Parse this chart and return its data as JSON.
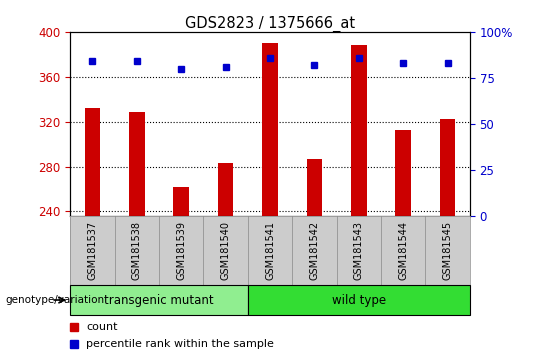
{
  "title": "GDS2823 / 1375666_at",
  "samples": [
    "GSM181537",
    "GSM181538",
    "GSM181539",
    "GSM181540",
    "GSM181541",
    "GSM181542",
    "GSM181543",
    "GSM181544",
    "GSM181545"
  ],
  "counts": [
    332,
    329,
    262,
    283,
    390,
    287,
    388,
    313,
    322
  ],
  "percentiles": [
    84,
    84,
    80,
    81,
    86,
    82,
    86,
    83,
    83
  ],
  "y_min": 236,
  "y_max": 400,
  "y_ticks_left": [
    240,
    280,
    320,
    360,
    400
  ],
  "y_ticks_right": [
    0,
    25,
    50,
    75,
    100
  ],
  "bar_color": "#cc0000",
  "dot_color": "#0000cc",
  "tick_label_color_left": "#cc0000",
  "tick_label_color_right": "#0000cc",
  "transgenic_color": "#90ee90",
  "wildtype_color": "#33dd33",
  "xticklabel_bg": "#cccccc",
  "xticklabel_edge": "#aaaaaa",
  "group_label": "genotype/variation",
  "legend_count_label": "count",
  "legend_percentile_label": "percentile rank within the sample",
  "bar_width": 0.35,
  "n_transgenic": 4,
  "n_wildtype": 5,
  "transgenic_label": "transgenic mutant",
  "wildtype_label": "wild type"
}
